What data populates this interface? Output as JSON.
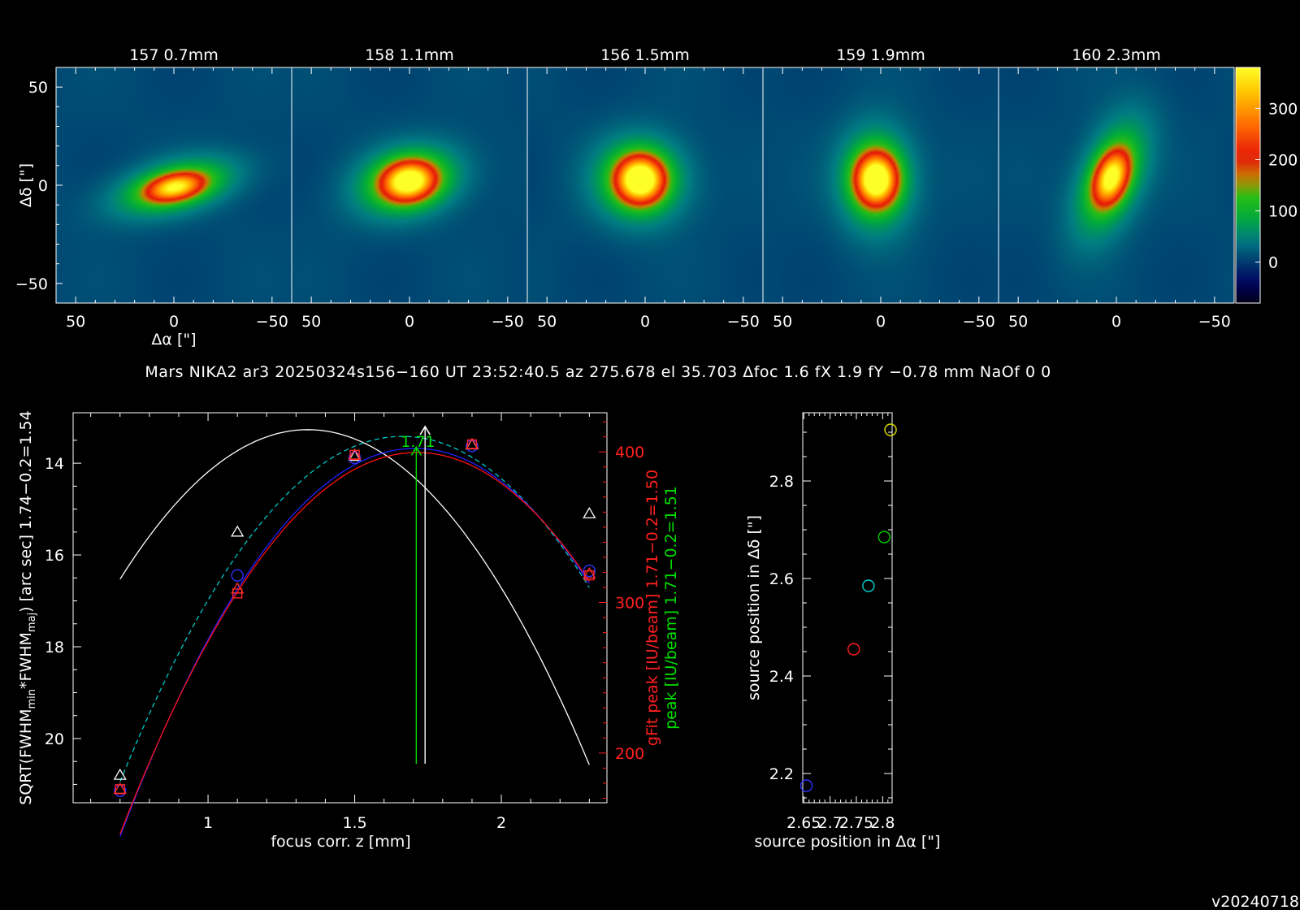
{
  "maps": {
    "panels": [
      {
        "title": "157  0.7mm",
        "spot": {
          "dx": 0.6,
          "dy": -1.0,
          "amp": 260,
          "sx": 10,
          "sy": 4.4,
          "rot": -12
        },
        "halo": {
          "amp": 120,
          "sx": 22,
          "sy": 9,
          "rot": -14
        }
      },
      {
        "title": "158  1.1mm",
        "spot": {
          "dx": -0.4,
          "dy": 2.0,
          "amp": 335,
          "sx": 9,
          "sy": 6.4,
          "rot": -10
        },
        "halo": {
          "amp": 125,
          "sx": 19,
          "sy": 12,
          "rot": -14
        }
      },
      {
        "title": "156  1.5mm",
        "spot": {
          "dx": -2.5,
          "dy": 2.8,
          "amp": 380,
          "sx": 7.8,
          "sy": 7.6,
          "rot": 0
        },
        "halo": {
          "amp": 125,
          "sx": 16,
          "sy": 15,
          "rot": 0
        }
      },
      {
        "title": "159  1.9mm",
        "spot": {
          "dx": -2.3,
          "dy": 3.0,
          "amp": 370,
          "sx": 6.8,
          "sy": 8.6,
          "rot": 0
        },
        "halo": {
          "amp": 125,
          "sx": 13,
          "sy": 18,
          "rot": 0
        }
      },
      {
        "title": "160  2.3mm",
        "spot": {
          "dx": -2.6,
          "dy": 3.8,
          "amp": 300,
          "sx": 5.4,
          "sy": 9.6,
          "rot": 20
        },
        "halo": {
          "amp": 120,
          "sx": 11,
          "sy": 22,
          "rot": 22
        }
      }
    ],
    "x_ticks": [
      "50",
      "0",
      "−50"
    ],
    "y_ticks": [
      "50",
      "0",
      "−50"
    ],
    "xlabel": "Δα [\"]",
    "ylabel": "Δδ [\"]",
    "range": [
      60,
      -60
    ],
    "colorbar": {
      "ticks": [
        "300",
        "200",
        "100",
        "0"
      ],
      "tick_values": [
        300,
        200,
        100,
        0
      ],
      "min": -80,
      "max": 380
    },
    "background_level": 10
  },
  "header_line": "Mars NIKA2 ar3 20250324s156−160 UT 23:52:40.5 az 275.678 el 35.703 Δfoc 1.6 fX 1.9 fY −0.78 mm NaOf 0 0",
  "version": "v20240718",
  "chart_data": [
    {
      "type": "line",
      "name": "focus-curve",
      "xlabel": "focus corr. z [mm]",
      "ylabel_parts": [
        "SQRT(FWHM",
        "min",
        "*FWHM",
        "maj",
        ") [arc sec] 1.74−0.2=1.54"
      ],
      "ylabel_right1": "gFit peak [IU/beam] 1.71−0.2=1.50",
      "ylabel_right2": "peak [IU/beam] 1.71−0.2=1.51",
      "xlim": [
        0.54,
        2.36
      ],
      "ylim_left": [
        21.4,
        12.9
      ],
      "ylim_right": [
        167,
        426
      ],
      "x_ticks": [
        1,
        1.5,
        2
      ],
      "x_tick_labels": [
        "1",
        "1.5",
        "2"
      ],
      "y_ticks_left": [
        14,
        16,
        18,
        20
      ],
      "y_tick_labels_left": [
        "14",
        "16",
        "18",
        "20"
      ],
      "y_ticks_right": [
        200,
        300,
        400
      ],
      "y_tick_labels_right": [
        "200",
        "300",
        "400"
      ],
      "x": [
        0.7,
        1.1,
        1.5,
        1.9,
        2.3
      ],
      "series": [
        {
          "marker": "triangle",
          "axis": "left",
          "color": "#ffffff",
          "values": [
            20.8,
            15.5,
            13.85,
            13.6,
            15.1
          ]
        },
        {
          "marker": "circle",
          "axis": "right",
          "color": "#3030ff",
          "values": [
            175,
            318,
            396,
            404,
            321
          ]
        },
        {
          "marker": "square",
          "axis": "right",
          "color": "#ff2020",
          "values": [
            176,
            306,
            398,
            405,
            318
          ]
        },
        {
          "marker": "triangle",
          "axis": "right",
          "color": "#ff3030",
          "values": [
            176,
            309,
            398,
            405,
            319
          ]
        }
      ],
      "fits": [
        {
          "axis": "left",
          "color": "#ffffff",
          "coeffs": [
            7.9375,
            -21.285,
            27.5375
          ],
          "dash": ""
        },
        {
          "axis": "right",
          "color": "#00c8c8",
          "coeffs": [
            -247.35,
            822.67,
            -273.7
          ],
          "dash": "6,4"
        },
        {
          "axis": "right",
          "color": "#2020ff",
          "coeffs": [
            -254.69,
            869.05,
            -339.0
          ],
          "dash": ""
        },
        {
          "axis": "right",
          "color": "#ff1010",
          "coeffs": [
            -247.35,
            846.93,
            -325.4
          ],
          "dash": ""
        }
      ],
      "best_focus": [
        {
          "x": 1.74,
          "color": "#ffffff",
          "y_left": 13.2
        },
        {
          "x": 1.71,
          "color": "#00e000",
          "y_left": 13.65
        }
      ],
      "best_focus_label": "1.71",
      "best_focus_label_color": "#00e000",
      "colors": {
        "axis_right": "#ff2020",
        "label_green": "#00e000"
      }
    },
    {
      "type": "scatter",
      "name": "source-position",
      "xlabel": "source position in Δα [\"]",
      "ylabel": "source position in Δδ [\"]",
      "xlim": [
        2.648,
        2.818
      ],
      "ylim": [
        2.14,
        2.94
      ],
      "x_ticks": [
        2.65,
        2.7,
        2.75,
        2.8
      ],
      "x_tick_labels": [
        "2.65",
        "2.7",
        "2.75",
        "2.8"
      ],
      "y_ticks": [
        2.2,
        2.4,
        2.6,
        2.8
      ],
      "y_tick_labels": [
        "2.2",
        "2.4",
        "2.6",
        "2.8"
      ],
      "points": [
        {
          "x": 2.655,
          "y": 2.175,
          "color": "#3030ff"
        },
        {
          "x": 2.745,
          "y": 2.455,
          "color": "#ff2020"
        },
        {
          "x": 2.773,
          "y": 2.585,
          "color": "#00d0d0"
        },
        {
          "x": 2.803,
          "y": 2.685,
          "color": "#00d000"
        },
        {
          "x": 2.815,
          "y": 2.905,
          "color": "#e0e000"
        }
      ]
    }
  ]
}
